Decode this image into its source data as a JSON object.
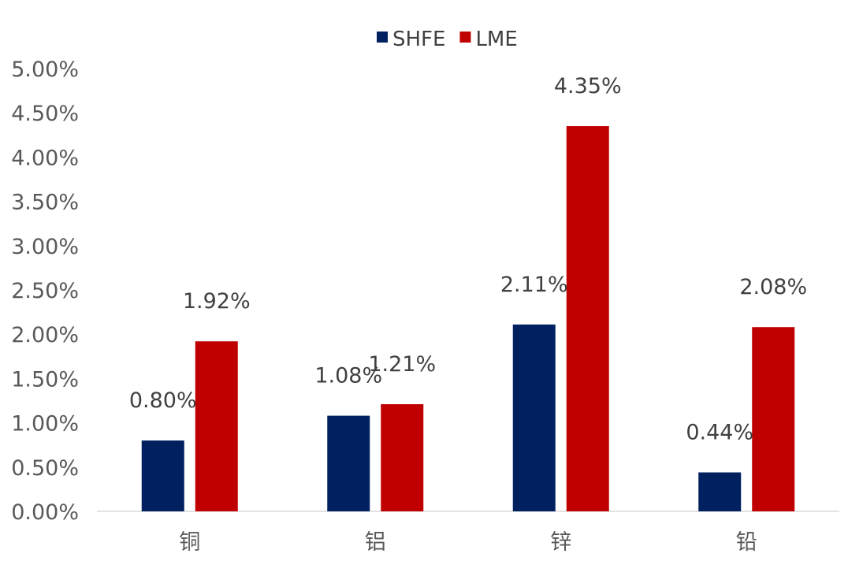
{
  "chart_data": {
    "type": "bar",
    "title": "",
    "xlabel": "",
    "ylabel": "",
    "categories": [
      "铜",
      "铝",
      "锌",
      "铅"
    ],
    "series": [
      {
        "name": "SHFE",
        "values": [
          0.8,
          1.08,
          2.11,
          0.44
        ],
        "labels": [
          "0.80%",
          "1.08%",
          "2.11%",
          "0.44%"
        ],
        "color": "#002060"
      },
      {
        "name": "LME",
        "values": [
          1.92,
          1.21,
          4.35,
          2.08
        ],
        "labels": [
          "1.92%",
          "1.21%",
          "4.35%",
          "2.08%"
        ],
        "color": "#C00000"
      }
    ],
    "ylim": [
      0,
      5
    ],
    "yticks": [
      0,
      0.5,
      1,
      1.5,
      2,
      2.5,
      3,
      3.5,
      4,
      4.5,
      5
    ],
    "ytick_labels": [
      "0.00%",
      "0.50%",
      "1.00%",
      "1.50%",
      "2.00%",
      "2.50%",
      "3.00%",
      "3.50%",
      "4.00%",
      "4.50%",
      "5.00%"
    ],
    "grid": false,
    "legend_position": "top"
  }
}
